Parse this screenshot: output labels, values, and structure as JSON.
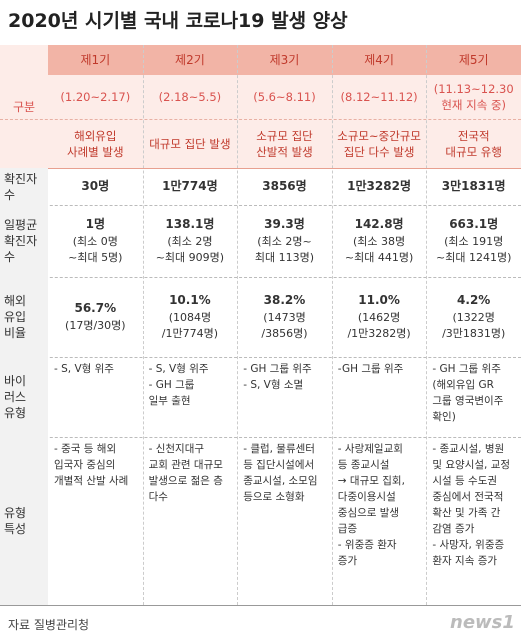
{
  "title": "2020년 시기별 국내 코로나19 발생 양상",
  "table": {
    "corner": "구분",
    "columns": [
      {
        "name": "제1기",
        "period": [
          "(1.20~2.17)"
        ],
        "description": [
          "해외유입",
          "사례별 발생"
        ]
      },
      {
        "name": "제2기",
        "period": [
          "(2.18~5.5)"
        ],
        "description": [
          "대규모 집단 발생"
        ]
      },
      {
        "name": "제3기",
        "period": [
          "(5.6~8.11)"
        ],
        "description": [
          "소규모 집단",
          "산발적 발생"
        ]
      },
      {
        "name": "제4기",
        "period": [
          "(8.12~11.12)"
        ],
        "description": [
          "소규모~중간규모",
          "집단 다수 발생"
        ]
      },
      {
        "name": "제5기",
        "period": [
          "(11.13~12.30",
          "현재 지속 중)"
        ],
        "description": [
          "전국적",
          "대규모 유행"
        ]
      }
    ],
    "rows": [
      {
        "label": [
          "확진자",
          "수"
        ],
        "cells": [
          [
            "30명"
          ],
          [
            "1만774명"
          ],
          [
            "3856명"
          ],
          [
            "1만3282명"
          ],
          [
            "3만1831명"
          ]
        ]
      },
      {
        "label": [
          "일평균",
          "확진자",
          "수"
        ],
        "cells": [
          [
            "1명",
            "(최소 0명",
            "~최대 5명)"
          ],
          [
            "138.1명",
            "(최소 2명",
            "~최대 909명)"
          ],
          [
            "39.3명",
            "(최소 2명~",
            "최대 113명)"
          ],
          [
            "142.8명",
            "(최소 38명",
            "~최대 441명)"
          ],
          [
            "663.1명",
            "(최소 191명",
            "~최대 1241명)"
          ]
        ]
      },
      {
        "label": [
          "해외",
          "유입",
          "비율"
        ],
        "cells": [
          [
            "56.7%",
            "(17명/30명)"
          ],
          [
            "10.1%",
            "(1084명",
            "/1만774명)"
          ],
          [
            "38.2%",
            "(1473명",
            "/3856명)"
          ],
          [
            "11.0%",
            "(1462명",
            "/1만3282명)"
          ],
          [
            "4.2%",
            "(1322명",
            "/3만1831명)"
          ]
        ]
      },
      {
        "label": [
          "바이",
          "러스",
          "유형"
        ],
        "cells": [
          [
            "- S, V형 위주"
          ],
          [
            "- S, V형 위주",
            "- GH 그룹",
            "일부 출현"
          ],
          [
            "- GH 그룹 위주",
            "- S, V형 소멸"
          ],
          [
            "-GH 그룹 위주"
          ],
          [
            "- GH 그룹 위주",
            "(해외유입 GR",
            "그룹 영국변이주",
            "확인)"
          ]
        ]
      },
      {
        "label": [
          "유형",
          "특성"
        ],
        "cells": [
          [
            "- 중국 등 해외",
            "입국자 중심의",
            "개별적 산발 사례"
          ],
          [
            "- 신천지대구",
            "교회 관련 대규모",
            "발생으로 젊은 층",
            "다수"
          ],
          [
            "- 클럽, 물류센터",
            "등 집단시설에서",
            "종교시설, 소모임",
            "등으로 소형화"
          ],
          [
            "- 사랑제일교회",
            "등 종교시설",
            "→ 대규모 집회,",
            "다중이용시설",
            "중심으로 발생",
            "급증",
            "- 위중증 환자",
            "증가"
          ],
          [
            "- 종교시설, 병원",
            "및 요양시설, 교정",
            "시설 등 수도권",
            "중심에서 전국적",
            "확산 및 가족 간",
            "감염 증가",
            "- 사망자, 위중증",
            "환자 지속 증가"
          ]
        ]
      }
    ]
  },
  "source": "자료 질병관리청",
  "logo": "news1"
}
